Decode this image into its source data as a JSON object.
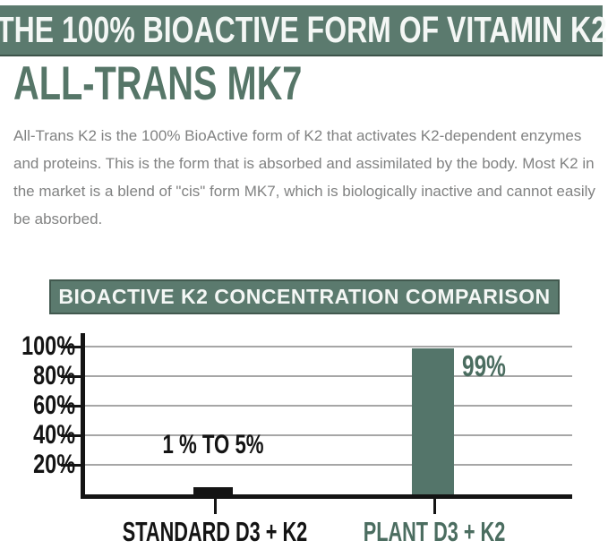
{
  "colors": {
    "banner_green": "#5b7a6e",
    "banner_border": "#42594f",
    "heading_green": "#567668",
    "bar_green": "#54756a",
    "label_green": "#4b6d60",
    "body_gray": "#818282",
    "grid": "#a6a6a6",
    "black": "#141414"
  },
  "header": {
    "banner": "THE 100% BIOACTIVE FORM OF VITAMIN K2",
    "title": "ALL-TRANS MK7",
    "paragraph": "All-Trans K2 is the 100% BioActive form of K2 that activates K2-dependent enzymes and proteins. This is the form that is absorbed and assimilated by the body. Most K2 in the market is a blend of \"cis\" form MK7, which is biologically inactive and cannot easily be absorbed."
  },
  "chart_data": {
    "type": "bar",
    "title": "BIOACTIVE K2 CONCENTRATION COMPARISON",
    "categories": [
      "STANDARD D3 + K2",
      "PLANT D3 + K2"
    ],
    "values": [
      5,
      99
    ],
    "value_labels": [
      "1 % TO 5%",
      "99%"
    ],
    "series_colors": [
      "#141414",
      "#54756a"
    ],
    "category_label_colors": [
      "#141414",
      "#4b6d60"
    ],
    "yticks": [
      100,
      80,
      60,
      40,
      20
    ],
    "ytick_labels": [
      "100%",
      "80%",
      "60%",
      "40%",
      "20%"
    ],
    "ylim": [
      0,
      105
    ],
    "grid": true,
    "legend": false,
    "xlabel": "",
    "ylabel": ""
  }
}
